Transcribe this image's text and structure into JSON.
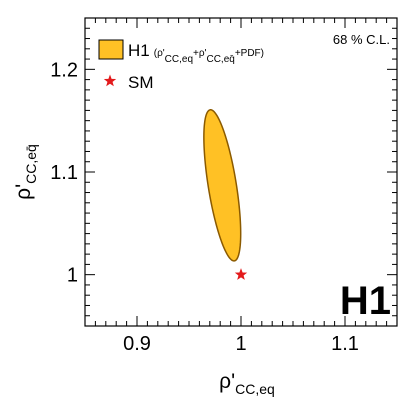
{
  "chart_data": {
    "type": "scatter",
    "xlabel": {
      "main": "ρ'",
      "sub": "CC,eq"
    },
    "ylabel": {
      "main": "ρ'",
      "sub": "CC,eq̄"
    },
    "xlim": [
      0.85,
      1.15
    ],
    "ylim": [
      0.95,
      1.25
    ],
    "x_ticks": [
      0.9,
      1.0,
      1.1
    ],
    "x_tick_labels": [
      "0.9",
      "1",
      "1.1"
    ],
    "y_ticks": [
      1.0,
      1.1,
      1.2
    ],
    "y_tick_labels": [
      "1",
      "1.1",
      "1.2"
    ],
    "grid": false,
    "legend_position": "top-left",
    "annotation": "68 % C.L.",
    "logo": "H1",
    "colors": {
      "contour_fill": "#ffc125",
      "contour_edge": "#8b5a00",
      "sm_marker": "#e31a1c"
    },
    "series": [
      {
        "name": "H1 (ρ'CC,eq+ρ'CC,eq̄+PDF)",
        "legend": {
          "main": "H1",
          "open": "(ρ'",
          "sub1": "CC,eq",
          "mid": "+ρ'",
          "sub2": "CC,eq̄",
          "close": "+PDF)"
        },
        "kind": "ellipse",
        "center": [
          0.982,
          1.087
        ],
        "semi_axis_major": 0.0745,
        "semi_axis_minor": 0.0135,
        "major_axis_angle_deg": 99
      },
      {
        "name": "SM",
        "legend": {
          "main": "SM"
        },
        "kind": "point",
        "x": 1.0,
        "y": 1.0
      }
    ]
  }
}
